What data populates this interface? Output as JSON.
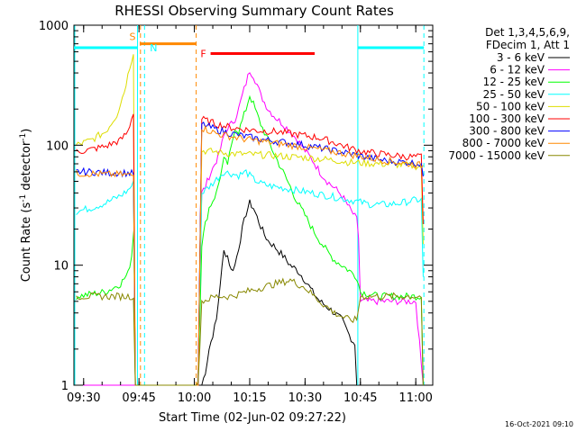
{
  "chart_data": {
    "type": "line",
    "title": "RHESSI Observing Summary Count Rates",
    "xlabel": "Start Time (02-Jun-02 09:27:22)",
    "ylabel_main": "Count Rate (s",
    "ylabel_sup1": "-1",
    "ylabel_mid": " detector",
    "ylabel_sup2": "-1",
    "ylabel_end": ")",
    "yscale": "log",
    "ylim": [
      1,
      1000
    ],
    "xlim_minutes": [
      27.37,
      124.6
    ],
    "x_unit": "minutes after 09:00",
    "x_ticks": [
      {
        "label": "09:30",
        "minutes": 30
      },
      {
        "label": "09:45",
        "minutes": 45
      },
      {
        "label": "10:00",
        "minutes": 60
      },
      {
        "label": "10:15",
        "minutes": 75
      },
      {
        "label": "10:30",
        "minutes": 90
      },
      {
        "label": "10:45",
        "minutes": 105
      },
      {
        "label": "11:00",
        "minutes": 120
      }
    ],
    "y_ticks": [
      {
        "label": "1",
        "value": 1
      },
      {
        "label": "10",
        "value": 10
      },
      {
        "label": "100",
        "value": 100
      },
      {
        "label": "1000",
        "value": 1000
      }
    ],
    "legend": {
      "header_lines": [
        "Det 1,3,4,5,6,9,",
        "FDecim 1, Att 1"
      ],
      "placement": "right"
    },
    "series": [
      {
        "name": "3 - 6 keV",
        "color": "#000000",
        "x": [
          28,
          43.5,
          44,
          55,
          61,
          62,
          63,
          64,
          66,
          67,
          68,
          69,
          70,
          71,
          72,
          73,
          74,
          75,
          76,
          77,
          78,
          79,
          80,
          81,
          82,
          84,
          86,
          88,
          90,
          92,
          94,
          96,
          98,
          100,
          102,
          103.5,
          104
        ],
        "y": [
          1,
          1,
          1,
          1,
          1,
          1,
          1.3,
          2,
          3.5,
          7,
          13,
          12,
          9,
          10,
          14,
          20,
          27,
          33,
          30,
          25,
          21,
          18,
          16,
          15,
          14,
          12,
          10,
          9,
          7.5,
          6,
          5,
          4.5,
          4,
          3.5,
          2.6,
          2.2,
          1
        ]
      },
      {
        "name": "6 - 12 keV",
        "color": "#ff00ff",
        "x": [
          28,
          43.5,
          44,
          55,
          61,
          62,
          63,
          64,
          66,
          67,
          68,
          69,
          70,
          71,
          72,
          73,
          74,
          75,
          76,
          77,
          78,
          80,
          82,
          84,
          86,
          88,
          90,
          92,
          94,
          96,
          98,
          100,
          102,
          104,
          104.5,
          105,
          110,
          115,
          117,
          118,
          119,
          120,
          122
        ],
        "y": [
          1,
          1,
          1,
          1,
          1,
          40,
          45,
          55,
          75,
          90,
          120,
          140,
          150,
          165,
          200,
          260,
          330,
          420,
          380,
          320,
          260,
          200,
          170,
          150,
          130,
          110,
          90,
          75,
          60,
          50,
          44,
          38,
          30,
          24,
          17,
          5,
          5,
          5,
          5,
          5,
          5,
          5,
          1
        ]
      },
      {
        "name": "12 - 25 keV",
        "color": "#00ff00",
        "x": [
          28,
          36,
          40,
          42,
          43,
          43.6,
          44,
          55,
          61,
          62,
          63,
          64,
          66,
          67,
          68,
          69,
          70,
          71,
          72,
          73,
          74,
          75,
          76,
          77,
          78,
          80,
          82,
          84,
          86,
          88,
          90,
          92,
          94,
          96,
          98,
          100,
          102,
          104,
          105,
          110,
          115,
          120,
          121.5,
          122
        ],
        "y": [
          5.5,
          6,
          7,
          8.5,
          12,
          20,
          1,
          1,
          1,
          15,
          22,
          30,
          40,
          55,
          75,
          70,
          95,
          140,
          130,
          160,
          200,
          260,
          220,
          180,
          150,
          110,
          80,
          60,
          45,
          33,
          26,
          20,
          16,
          13,
          11,
          10,
          9,
          8,
          6,
          5.5,
          5.5,
          5.5,
          5.5,
          1
        ]
      },
      {
        "name": "25 - 50 keV",
        "color": "#00ffff",
        "x": [
          28,
          32,
          36,
          40,
          42,
          43.5,
          44,
          55,
          61,
          62,
          64,
          66,
          68,
          70,
          72,
          74,
          76,
          78,
          80,
          84,
          88,
          92,
          96,
          100,
          104,
          108,
          112,
          116,
          120,
          121.5,
          122
        ],
        "y": [
          28,
          30,
          33,
          38,
          42,
          48,
          1,
          1,
          1,
          40,
          45,
          52,
          60,
          58,
          56,
          60,
          52,
          48,
          46,
          44,
          42,
          40,
          38,
          36,
          34,
          32,
          32,
          33,
          35,
          35,
          8
        ]
      },
      {
        "name": "50 - 100 keV",
        "color": "#dddd00",
        "x": [
          28,
          32,
          36,
          39,
          41,
          42.5,
          43.5,
          44,
          55,
          61,
          62,
          66,
          70,
          74,
          78,
          82,
          86,
          90,
          94,
          98,
          102,
          106,
          110,
          114,
          118,
          121.5,
          122
        ],
        "y": [
          100,
          110,
          130,
          180,
          280,
          450,
          600,
          1,
          1,
          1,
          90,
          88,
          85,
          84,
          83,
          82,
          80,
          79,
          77,
          75,
          72,
          71,
          70,
          69,
          68,
          66,
          15
        ]
      },
      {
        "name": "100 - 300 keV",
        "color": "#ff0000",
        "x": [
          28,
          32,
          36,
          40,
          42,
          43.5,
          44,
          55,
          61,
          62,
          66,
          70,
          74,
          78,
          82,
          86,
          90,
          94,
          98,
          102,
          106,
          110,
          114,
          118,
          121.5,
          122
        ],
        "y": [
          88,
          92,
          98,
          110,
          130,
          190,
          1,
          1,
          1,
          165,
          150,
          140,
          135,
          132,
          130,
          125,
          120,
          115,
          105,
          95,
          88,
          85,
          82,
          80,
          80,
          22
        ]
      },
      {
        "name": "300 - 800 keV",
        "color": "#0000ff",
        "x": [
          28,
          32,
          36,
          40,
          43.5,
          44,
          55,
          61,
          62,
          66,
          70,
          74,
          78,
          82,
          86,
          90,
          94,
          98,
          102,
          106,
          110,
          114,
          118,
          121.5,
          122
        ],
        "y": [
          60,
          60,
          59,
          59,
          58,
          1,
          1,
          1,
          150,
          135,
          125,
          118,
          112,
          108,
          104,
          100,
          95,
          90,
          85,
          80,
          76,
          73,
          72,
          70,
          55
        ]
      },
      {
        "name": "800 - 7000 keV",
        "color": "#ff8800",
        "x": [
          28,
          32,
          36,
          40,
          43.5,
          44,
          55,
          61,
          62,
          66,
          70,
          74,
          78,
          82,
          86,
          90,
          94,
          98,
          102,
          106,
          110,
          114,
          118,
          121.5,
          122
        ],
        "y": [
          58,
          58,
          57,
          57,
          56,
          1,
          1,
          1,
          140,
          125,
          118,
          112,
          108,
          104,
          100,
          96,
          92,
          88,
          84,
          80,
          76,
          73,
          70,
          68,
          68
        ]
      },
      {
        "name": "7000 - 15000 keV",
        "color": "#888800",
        "x": [
          28,
          32,
          36,
          40,
          43.5,
          44,
          55,
          61,
          62,
          66,
          70,
          74,
          78,
          82,
          86,
          90,
          94,
          98,
          102,
          104,
          105,
          110,
          115,
          120,
          121.5,
          122
        ],
        "y": [
          5.5,
          5.5,
          5.5,
          5.5,
          5.5,
          1,
          1,
          1,
          5,
          5.5,
          5.5,
          6,
          6.5,
          7,
          7.5,
          6.5,
          5,
          4,
          3.5,
          3.5,
          5.5,
          5.5,
          5.5,
          5.5,
          5.5,
          1
        ]
      }
    ],
    "annotations": [
      {
        "label": "S",
        "color": "#ff8800",
        "start_min": 45.2,
        "end_min": 60.5,
        "level": 700,
        "style": "bar"
      },
      {
        "label": "N",
        "color": "#00ffff",
        "start_min": 46.5,
        "end_min": 104.3,
        "level": 650,
        "style": "none"
      },
      {
        "label": "F",
        "color": "#ff0000",
        "start_min": 64.4,
        "end_min": 92.6,
        "level": 580,
        "style": "bar"
      }
    ],
    "night_bars": [
      {
        "color": "#00ffff",
        "start_min": 27.37,
        "end_min": 44.5,
        "level": 650
      },
      {
        "color": "#00ffff",
        "start_min": 104.3,
        "end_min": 122.2,
        "level": 650
      }
    ],
    "vertical_markers": [
      {
        "minutes": 27.6,
        "color": "#00ffff",
        "dashed": false
      },
      {
        "minutes": 44.6,
        "color": "#00ffff",
        "dashed": false
      },
      {
        "minutes": 45.4,
        "color": "#ff8800",
        "dashed": true
      },
      {
        "minutes": 46.5,
        "color": "#00ffff",
        "dashed": true
      },
      {
        "minutes": 60.5,
        "color": "#ff8800",
        "dashed": true
      },
      {
        "minutes": 104.3,
        "color": "#00ffff",
        "dashed": false
      },
      {
        "minutes": 122.2,
        "color": "#00ffff",
        "dashed": true
      }
    ]
  },
  "footer": {
    "timestamp": "16-Oct-2021 09:10"
  }
}
